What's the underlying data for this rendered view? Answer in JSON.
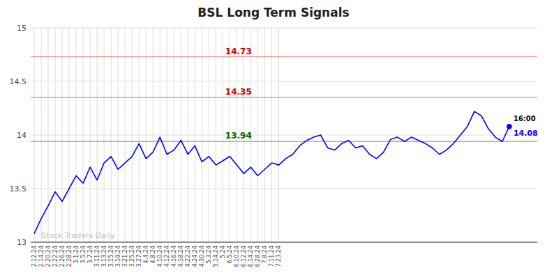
{
  "chart_data": {
    "type": "line",
    "title": "BSL Long Term Signals",
    "color": "blue",
    "grid": true,
    "ylim": [
      13.0,
      15.0
    ],
    "yticks": [
      13,
      13.5,
      14,
      14.5,
      15
    ],
    "categories": [
      "2.12.24",
      "2.14.24",
      "2.20.24",
      "2.22.24",
      "2.26.24",
      "2.28.24",
      "3.1.24",
      "3.5.24",
      "3.7.24",
      "3.11.24",
      "3.13.24",
      "3.15.24",
      "3.19.24",
      "3.21.24",
      "3.25.24",
      "3.27.24",
      "4.4.24",
      "4.8.24",
      "4.10.24",
      "4.12.24",
      "4.16.24",
      "4.18.24",
      "4.22.24",
      "4.24.24",
      "4.30.24",
      "5.3.24",
      "5.14.24",
      "5.24",
      "6.5.24",
      "6.10.24",
      "6.12.24",
      "6.14.24",
      "6.28.24",
      "7.8.24",
      "7.11.24",
      "7.23.24",
      null,
      null,
      null,
      null,
      null,
      null,
      null,
      null,
      null,
      null,
      null,
      null,
      null,
      null,
      null,
      null,
      null,
      null,
      null,
      null,
      null,
      null,
      null,
      null,
      null,
      null,
      null,
      null,
      null,
      null,
      null,
      null,
      null
    ],
    "values": [
      13.08,
      13.22,
      13.34,
      13.47,
      13.38,
      13.5,
      13.62,
      13.55,
      13.7,
      13.58,
      13.74,
      13.8,
      13.68,
      13.74,
      13.8,
      13.92,
      13.78,
      13.84,
      13.98,
      13.82,
      13.86,
      13.95,
      13.82,
      13.9,
      13.75,
      13.8,
      13.72,
      13.76,
      13.8,
      13.72,
      13.64,
      13.7,
      13.62,
      13.68,
      13.74,
      13.72,
      13.78,
      13.82,
      13.9,
      13.95,
      13.98,
      14.0,
      13.88,
      13.86,
      13.92,
      13.95,
      13.88,
      13.9,
      13.82,
      13.78,
      13.84,
      13.96,
      13.98,
      13.94,
      13.98,
      13.95,
      13.92,
      13.88,
      13.82,
      13.86,
      13.92,
      14.0,
      14.08,
      14.22,
      14.18,
      14.06,
      13.98,
      13.94,
      14.08
    ],
    "hlines": [
      {
        "value": 14.73,
        "label": "14.73",
        "color": "#cc0000"
      },
      {
        "value": 14.35,
        "label": "14.35",
        "color": "#cc0000"
      },
      {
        "value": 13.94,
        "label": "13.94",
        "color": "#006600"
      }
    ],
    "last_label": "16:00",
    "last_value_label": "14.08",
    "watermark": "Stock Traders Daily"
  }
}
